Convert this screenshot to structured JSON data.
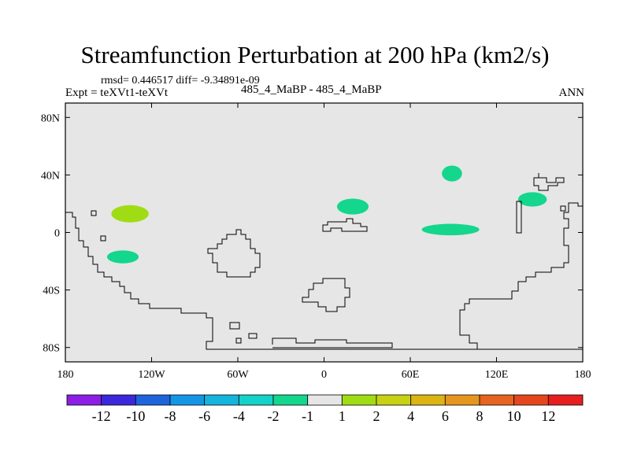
{
  "chart_data": {
    "type": "contour_map",
    "title": "Streamfunction Perturbation at 200 hPa (km2/s)",
    "stats": "rmsd= 0.446517 diff= -9.34891e-09",
    "left_label": "Expt = teXVt1-teXVt",
    "center_label": "485_4_MaBP - 485_4_MaBP",
    "right_label": "ANN",
    "xlim": [
      -180,
      180
    ],
    "ylim": [
      -90,
      90
    ],
    "x_ticks": [
      {
        "value": -180,
        "label": "180"
      },
      {
        "value": -120,
        "label": "120W"
      },
      {
        "value": -60,
        "label": "60W"
      },
      {
        "value": 0,
        "label": "0"
      },
      {
        "value": 60,
        "label": "60E"
      },
      {
        "value": 120,
        "label": "120E"
      },
      {
        "value": 180,
        "label": "180"
      }
    ],
    "y_ticks": [
      {
        "value": 80,
        "label": "80N"
      },
      {
        "value": 40,
        "label": "40N"
      },
      {
        "value": 0,
        "label": "0"
      },
      {
        "value": -40,
        "label": "40S"
      },
      {
        "value": -80,
        "label": "80S"
      }
    ],
    "background_color": "#e6e6e6",
    "anomalies": [
      {
        "lon": -135,
        "lat": 13,
        "rlon": 13,
        "rlat": 6,
        "category": "1 to 2",
        "color": "#a0dc14"
      },
      {
        "lon": -140,
        "lat": -17,
        "rlon": 11,
        "rlat": 4.5,
        "category": "-2 to -1",
        "color": "#14d68c"
      },
      {
        "lon": 20,
        "lat": 18,
        "rlon": 11,
        "rlat": 5.5,
        "category": "-2 to -1",
        "color": "#14d68c"
      },
      {
        "lon": 88,
        "lat": 2,
        "rlon": 20,
        "rlat": 4,
        "category": "-2 to -1",
        "color": "#14d68c"
      },
      {
        "lon": 89,
        "lat": 41,
        "rlon": 7,
        "rlat": 5.5,
        "category": "-2 to -1",
        "color": "#14d68c"
      },
      {
        "lon": 145,
        "lat": 23,
        "rlon": 10,
        "rlat": 5,
        "category": "-2 to -1",
        "color": "#14d68c"
      }
    ],
    "colorbar": {
      "colors": [
        "#8c1ee6",
        "#3c28dc",
        "#1e64dc",
        "#1496e6",
        "#14b4dc",
        "#14d2c8",
        "#14d68c",
        "#e6e6e6",
        "#a0dc14",
        "#c8d214",
        "#dcb414",
        "#e6961e",
        "#e6641e",
        "#e6461e",
        "#e61e1e"
      ],
      "labels": [
        "-12",
        "-10",
        "-8",
        "-6",
        "-4",
        "-2",
        "-1",
        "1",
        "2",
        "4",
        "6",
        "8",
        "10",
        "12"
      ]
    }
  }
}
